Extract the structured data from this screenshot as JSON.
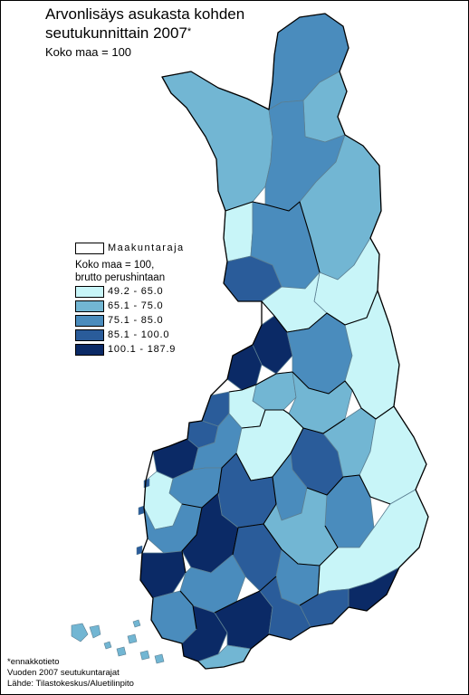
{
  "title_line1": "Arvonlisäys asukasta kohden",
  "title_line2": "seutukunnittain 2007",
  "title_mark": "*",
  "subtitle": "Koko maa = 100",
  "legend": {
    "border_label": "Maakuntaraja",
    "heading_line1": "Koko maa = 100,",
    "heading_line2": "brutto perushintaan",
    "classes": [
      {
        "label": "49.2 - 65.0",
        "color": "#c8f5f8"
      },
      {
        "label": "65.1 - 75.0",
        "color": "#72b6d3"
      },
      {
        "label": "75.1 - 85.0",
        "color": "#4a8cbd"
      },
      {
        "label": "85.1 - 100.0",
        "color": "#2a5c9a"
      },
      {
        "label": "100.1 - 187.9",
        "color": "#0b2a66"
      }
    ]
  },
  "footnotes": [
    "*ennakkotieto",
    "Vuoden 2007 seutukuntarajat",
    "Lähde: Tilastokeskus/Aluetilinpito"
  ],
  "regions": [
    {
      "id": "lapland-west-arm",
      "cls": 1
    },
    {
      "id": "lapland-north",
      "cls": 2
    },
    {
      "id": "lapland-northeast",
      "cls": 1
    },
    {
      "id": "lapland-central-west",
      "cls": 1
    },
    {
      "id": "lapland-center",
      "cls": 2
    },
    {
      "id": "lapland-east",
      "cls": 1
    },
    {
      "id": "tornio",
      "cls": 0
    },
    {
      "id": "rovaniemi",
      "cls": 2
    },
    {
      "id": "kemi",
      "cls": 3
    },
    {
      "id": "lapland-southeast",
      "cls": 1
    },
    {
      "id": "oulu-north",
      "cls": 0
    },
    {
      "id": "kuusamo",
      "cls": 0
    },
    {
      "id": "oulu",
      "cls": 4
    },
    {
      "id": "raahe",
      "cls": 4
    },
    {
      "id": "kainuu-west",
      "cls": 2
    },
    {
      "id": "kainuu-east",
      "cls": 0
    },
    {
      "id": "nivala",
      "cls": 1
    },
    {
      "id": "ylivieska",
      "cls": 0
    },
    {
      "id": "iisalmi",
      "cls": 1
    },
    {
      "id": "kokkola",
      "cls": 3
    },
    {
      "id": "pietarsaari",
      "cls": 3
    },
    {
      "id": "vaasa",
      "cls": 4
    },
    {
      "id": "kauhava",
      "cls": 2
    },
    {
      "id": "kuopio",
      "cls": 3
    },
    {
      "id": "joensuu",
      "cls": 1
    },
    {
      "id": "north-karelia-east",
      "cls": 0
    },
    {
      "id": "keski-suomi-north",
      "cls": 0
    },
    {
      "id": "seinajoki",
      "cls": 2
    },
    {
      "id": "kristinestad",
      "cls": 0
    },
    {
      "id": "jyvaskyla",
      "cls": 3
    },
    {
      "id": "varkaus",
      "cls": 2
    },
    {
      "id": "savonlinna",
      "cls": 2
    },
    {
      "id": "mikkeli",
      "cls": 1
    },
    {
      "id": "pori",
      "cls": 2
    },
    {
      "id": "tampere",
      "cls": 4
    },
    {
      "id": "kanta-hame",
      "cls": 2
    },
    {
      "id": "lahti",
      "cls": 3
    },
    {
      "id": "kouvola",
      "cls": 2
    },
    {
      "id": "lappeenranta",
      "cls": 0
    },
    {
      "id": "imatra",
      "cls": 4
    },
    {
      "id": "kotka",
      "cls": 3
    },
    {
      "id": "rauma",
      "cls": 4
    },
    {
      "id": "salo",
      "cls": 2
    },
    {
      "id": "turku",
      "cls": 4
    },
    {
      "id": "helsinki",
      "cls": 4
    },
    {
      "id": "porvoo",
      "cls": 3
    },
    {
      "id": "raasepori",
      "cls": 1
    }
  ]
}
